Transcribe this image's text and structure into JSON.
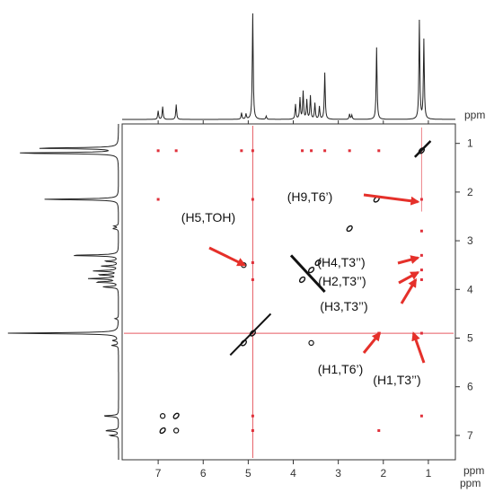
{
  "chart_data": {
    "type": "scatter",
    "title": "",
    "xlabel": "ppm",
    "ylabel": "ppm",
    "x_axis": {
      "range": [
        7.8,
        0.4
      ],
      "reversed": true,
      "ticks": [
        7,
        6,
        5,
        4,
        3,
        2,
        1
      ],
      "unit": "ppm"
    },
    "y_axis": {
      "range": [
        0.6,
        7.5
      ],
      "reversed": false,
      "ticks": [
        1,
        2,
        3,
        4,
        5,
        6,
        7
      ],
      "unit": "ppm"
    },
    "diagonal_peaks": [
      {
        "x": 6.9,
        "y": 6.9
      },
      {
        "x": 6.6,
        "y": 6.6
      },
      {
        "x": 5.1,
        "y": 5.1
      },
      {
        "x": 4.9,
        "y": 4.9
      },
      {
        "x": 3.8,
        "y": 3.8
      },
      {
        "x": 3.6,
        "y": 3.6
      },
      {
        "x": 3.45,
        "y": 3.45
      },
      {
        "x": 2.75,
        "y": 2.75
      },
      {
        "x": 2.15,
        "y": 2.15
      },
      {
        "x": 1.15,
        "y": 1.15
      }
    ],
    "cross_peaks": [
      {
        "x": 5.1,
        "y": 3.5
      },
      {
        "x": 3.6,
        "y": 5.1
      },
      {
        "x": 6.6,
        "y": 6.9
      },
      {
        "x": 6.9,
        "y": 6.6
      }
    ],
    "noise_peaks": [
      {
        "x": 4.9,
        "y": 1.15
      },
      {
        "x": 4.9,
        "y": 2.15
      },
      {
        "x": 4.9,
        "y": 3.45
      },
      {
        "x": 4.9,
        "y": 3.8
      },
      {
        "x": 4.9,
        "y": 6.6
      },
      {
        "x": 4.9,
        "y": 6.9
      },
      {
        "x": 7.0,
        "y": 1.15
      },
      {
        "x": 5.15,
        "y": 1.15
      },
      {
        "x": 3.8,
        "y": 1.15
      },
      {
        "x": 3.6,
        "y": 1.15
      },
      {
        "x": 3.3,
        "y": 1.15
      },
      {
        "x": 2.75,
        "y": 1.15
      },
      {
        "x": 2.1,
        "y": 1.15
      },
      {
        "x": 1.15,
        "y": 2.15
      },
      {
        "x": 1.15,
        "y": 2.8
      },
      {
        "x": 1.15,
        "y": 3.3
      },
      {
        "x": 1.15,
        "y": 3.6
      },
      {
        "x": 1.15,
        "y": 3.8
      },
      {
        "x": 1.15,
        "y": 4.9
      },
      {
        "x": 2.1,
        "y": 4.9
      },
      {
        "x": 7.0,
        "y": 2.15
      },
      {
        "x": 6.6,
        "y": 1.15
      },
      {
        "x": 1.15,
        "y": 6.6
      },
      {
        "x": 2.1,
        "y": 6.9
      }
    ],
    "projection_peaks": [
      {
        "ppm": 7.0,
        "height": 0.08
      },
      {
        "ppm": 6.9,
        "height": 0.12
      },
      {
        "ppm": 6.6,
        "height": 0.14
      },
      {
        "ppm": 5.15,
        "height": 0.06
      },
      {
        "ppm": 5.05,
        "height": 0.05
      },
      {
        "ppm": 4.9,
        "height": 1.0
      },
      {
        "ppm": 4.6,
        "height": 0.03
      },
      {
        "ppm": 3.95,
        "height": 0.14
      },
      {
        "ppm": 3.85,
        "height": 0.2
      },
      {
        "ppm": 3.78,
        "height": 0.26
      },
      {
        "ppm": 3.7,
        "height": 0.18
      },
      {
        "ppm": 3.62,
        "height": 0.22
      },
      {
        "ppm": 3.52,
        "height": 0.15
      },
      {
        "ppm": 3.42,
        "height": 0.12
      },
      {
        "ppm": 3.3,
        "height": 0.44
      },
      {
        "ppm": 2.75,
        "height": 0.05
      },
      {
        "ppm": 2.7,
        "height": 0.04
      },
      {
        "ppm": 2.15,
        "height": 0.68
      },
      {
        "ppm": 1.2,
        "height": 0.93
      },
      {
        "ppm": 1.1,
        "height": 0.75
      }
    ],
    "annotations": [
      {
        "text": "(H5,TOH)",
        "target_x": 5.0,
        "target_y": 3.5
      },
      {
        "text": "(H9,T6’)",
        "target_x": 1.15,
        "target_y": 2.2
      },
      {
        "text": "(H4,T3’’)",
        "target_x": 1.15,
        "target_y": 3.35
      },
      {
        "text": "(H2,T3’’)",
        "target_x": 1.15,
        "target_y": 3.65
      },
      {
        "text": "(H3,T3’’)",
        "target_x": 1.2,
        "target_y": 3.8
      },
      {
        "text": "(H1,T6’)",
        "target_x": 2.0,
        "target_y": 4.9
      },
      {
        "text": "(H1,T3’’)",
        "target_x": 1.25,
        "target_y": 4.9
      }
    ],
    "grid": false,
    "colors": {
      "contour": "#111111",
      "noise": "#e0303a",
      "arrow": "#e5302a",
      "frame": "#333333"
    }
  }
}
